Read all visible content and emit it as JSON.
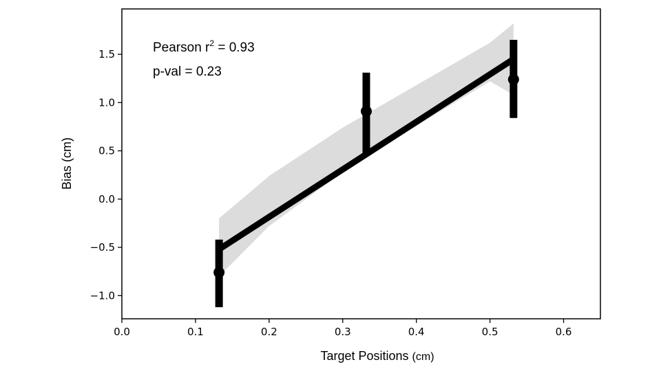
{
  "chart_data": {
    "type": "scatter",
    "xlabel": "Target Positions",
    "xlabel_unit": "(cm)",
    "ylabel": "Bias (cm)",
    "xlim": [
      0.0,
      0.65
    ],
    "ylim": [
      -1.24,
      1.97
    ],
    "xticks": [
      0.0,
      0.1,
      0.2,
      0.3,
      0.4,
      0.5,
      0.6
    ],
    "xtick_labels": [
      "0.0",
      "0.1",
      "0.2",
      "0.3",
      "0.4",
      "0.5",
      "0.6"
    ],
    "yticks": [
      -1.0,
      -0.5,
      0.0,
      0.5,
      1.0,
      1.5
    ],
    "ytick_labels": [
      "−1.0",
      "−0.5",
      "0.0",
      "0.5",
      "1.0",
      "1.5"
    ],
    "points": [
      {
        "x": 0.132,
        "y": -0.76,
        "err_low": -1.12,
        "err_high": -0.42
      },
      {
        "x": 0.332,
        "y": 0.91,
        "err_low": 0.46,
        "err_high": 1.31
      },
      {
        "x": 0.532,
        "y": 1.24,
        "err_low": 0.84,
        "err_high": 1.65
      }
    ],
    "regression": {
      "x": [
        0.132,
        0.532
      ],
      "y": [
        -0.52,
        1.45
      ]
    },
    "confidence_band": {
      "x": [
        0.132,
        0.2,
        0.3,
        0.4,
        0.5,
        0.532
      ],
      "upper": [
        -0.2,
        0.24,
        0.74,
        1.18,
        1.62,
        1.82
      ],
      "lower": [
        -0.8,
        -0.28,
        0.28,
        0.76,
        1.22,
        1.08
      ]
    },
    "annotations": {
      "pearson_prefix": "Pearson r",
      "pearson_sup": "2",
      "pearson_value": " = 0.93",
      "pval": "p-val = 0.23"
    },
    "grid": false,
    "colors": {
      "line": "#000000",
      "band": "#dcdcdc",
      "marker": "#000000"
    }
  }
}
